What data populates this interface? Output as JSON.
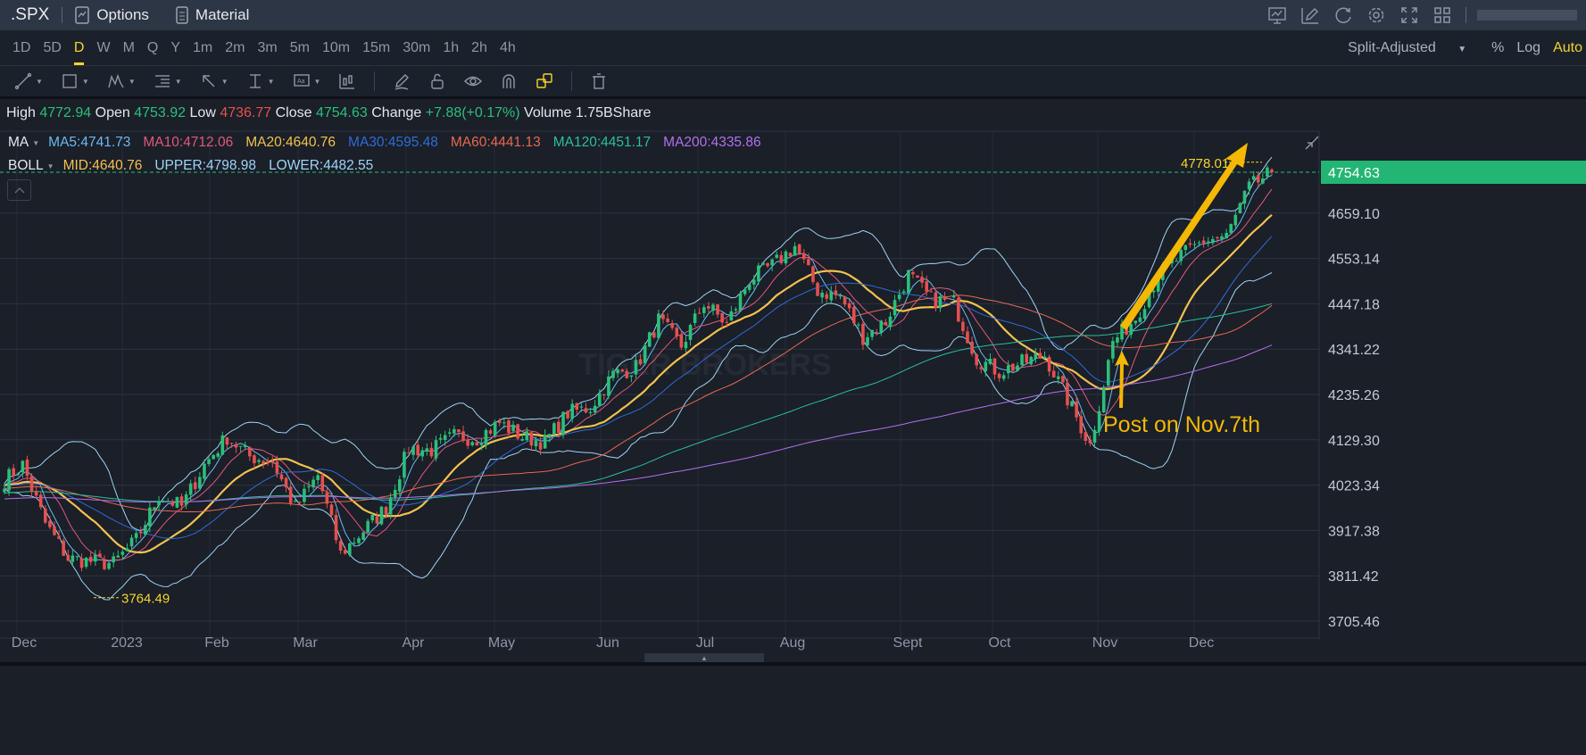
{
  "header": {
    "symbol": ".SPX",
    "tabs": [
      {
        "label": "Options",
        "icon": "chart-doc-icon"
      },
      {
        "label": "Material",
        "icon": "document-icon"
      }
    ],
    "right_icons": [
      "presentation-chart-icon",
      "edit-icon",
      "refresh-icon",
      "settings-icon",
      "fullscreen-icon",
      "grid-layout-icon"
    ]
  },
  "timeframes": {
    "items": [
      "1D",
      "5D",
      "D",
      "W",
      "M",
      "Q",
      "Y",
      "1m",
      "2m",
      "3m",
      "5m",
      "10m",
      "15m",
      "30m",
      "1h",
      "2h",
      "4h"
    ],
    "active": "D"
  },
  "price_options": {
    "adjust": "Split-Adjusted",
    "percent": "%",
    "log": "Log",
    "auto": "Auto"
  },
  "tools": [
    "trend-line-icon",
    "rectangle-icon",
    "pattern-icon",
    "fibonacci-icon",
    "arrow-icon",
    "measure-icon",
    "text-note-icon",
    "candle-type-icon",
    "pencil-icon",
    "lock-icon",
    "eye-icon",
    "magnet-icon",
    "layers-icon",
    "trash-icon"
  ],
  "quote": [
    {
      "label": "High",
      "value": "4772.94",
      "tone": "g"
    },
    {
      "label": "Open",
      "value": "4753.92",
      "tone": "g"
    },
    {
      "label": "Low",
      "value": "4736.77",
      "tone": "r"
    },
    {
      "label": "Close",
      "value": "4754.63",
      "tone": "g"
    },
    {
      "label": "Change",
      "value": "+7.88(+0.17%)",
      "tone": "g"
    },
    {
      "label": "Volume",
      "value": "1.75BShare",
      "tone": ""
    }
  ],
  "indicators": {
    "ma": {
      "name": "MA",
      "items": [
        {
          "label": "MA5:4741.73",
          "period": 5,
          "color": "#6cb9f2"
        },
        {
          "label": "MA10:4712.06",
          "period": 10,
          "color": "#e2577c"
        },
        {
          "label": "MA20:4640.76",
          "period": 20,
          "color": "#f2c14e"
        },
        {
          "label": "MA30:4595.48",
          "period": 30,
          "color": "#2f6bd8"
        },
        {
          "label": "MA60:4441.13",
          "period": 60,
          "color": "#e8674f"
        },
        {
          "label": "MA120:4451.17",
          "period": 120,
          "color": "#2bbf99"
        },
        {
          "label": "MA200:4335.86",
          "period": 200,
          "color": "#b36ff0"
        }
      ]
    },
    "boll": {
      "name": "BOLL",
      "items": [
        {
          "label": "MID:4640.76",
          "color": "#f2c14e"
        },
        {
          "label": "UPPER:4798.98",
          "color": "#9fd3f5"
        },
        {
          "label": "LOWER:4482.55",
          "color": "#9fd3f5"
        }
      ]
    }
  },
  "chart_data": {
    "type": "candlestick",
    "ylim": [
      3686.7,
      4850.6
    ],
    "y_ticks": [
      "4659.10",
      "4553.14",
      "4447.18",
      "4341.22",
      "4235.26",
      "4129.30",
      "4023.34",
      "3917.38",
      "3811.42",
      "3705.46"
    ],
    "x_ticks": [
      "Dec",
      "2023",
      "Feb",
      "Mar",
      "Apr",
      "May",
      "Jun",
      "Jul",
      "Aug",
      "Sept",
      "Oct",
      "Nov",
      "Dec"
    ],
    "last_price": "4754.63",
    "high_label": "4778.01",
    "low_label": "3764.49",
    "annotation": "Post on Nov.7th",
    "watermark": "TIGER BROKERS",
    "up_color": "#2bbf7a",
    "down_color": "#e5504f",
    "accent": "#f5b800",
    "weekly_closes": [
      4026,
      4071,
      3934,
      3852,
      3845,
      3840,
      3895,
      3999,
      3973,
      4071,
      4136,
      4090,
      4079,
      3970,
      4046,
      3862,
      3917,
      3971,
      4109,
      4105,
      4138,
      4133,
      4169,
      4136,
      4124,
      4192,
      4205,
      4282,
      4299,
      4409,
      4348,
      4450,
      4399,
      4505,
      4536,
      4582,
      4478,
      4464,
      4370,
      4406,
      4515,
      4457,
      4450,
      4320,
      4288,
      4309,
      4327,
      4224,
      4117,
      4358,
      4415,
      4514,
      4559,
      4595,
      4604,
      4719,
      4754.63
    ]
  }
}
